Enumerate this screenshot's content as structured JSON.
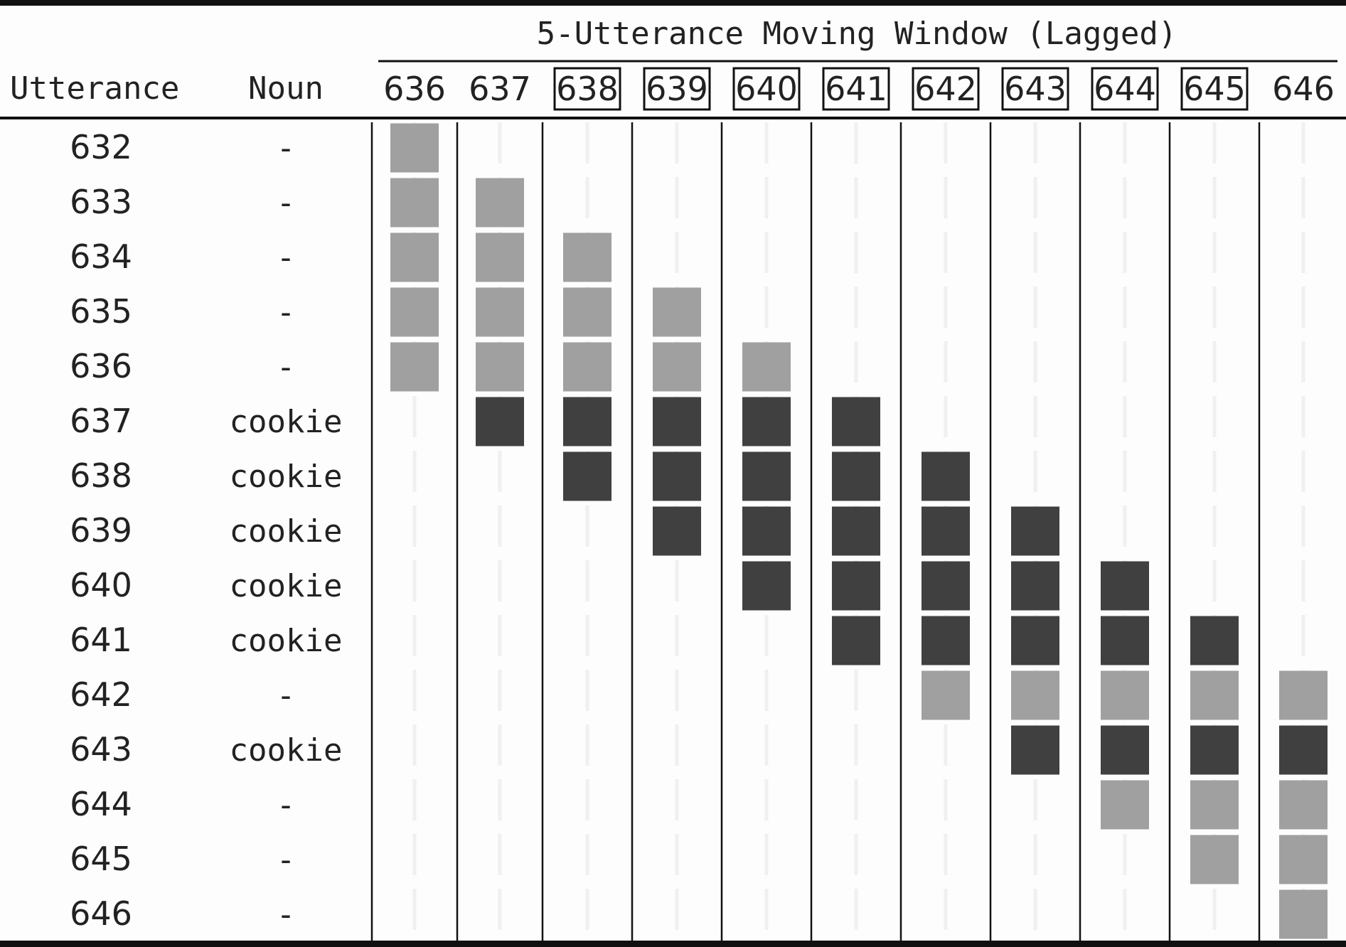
{
  "header": {
    "title": "5-Utterance Moving Window (Lagged)",
    "col_utterance": "Utterance",
    "col_noun": "Noun"
  },
  "windows": [
    {
      "label": "636",
      "boxed": false
    },
    {
      "label": "637",
      "boxed": false
    },
    {
      "label": "638",
      "boxed": true
    },
    {
      "label": "639",
      "boxed": true
    },
    {
      "label": "640",
      "boxed": true
    },
    {
      "label": "641",
      "boxed": true
    },
    {
      "label": "642",
      "boxed": true
    },
    {
      "label": "643",
      "boxed": true
    },
    {
      "label": "644",
      "boxed": true
    },
    {
      "label": "645",
      "boxed": true
    },
    {
      "label": "646",
      "boxed": false
    }
  ],
  "rows": [
    {
      "utterance": "632",
      "noun": "-",
      "has_noun": false
    },
    {
      "utterance": "633",
      "noun": "-",
      "has_noun": false
    },
    {
      "utterance": "634",
      "noun": "-",
      "has_noun": false
    },
    {
      "utterance": "635",
      "noun": "-",
      "has_noun": false
    },
    {
      "utterance": "636",
      "noun": "-",
      "has_noun": false
    },
    {
      "utterance": "637",
      "noun": "cookie",
      "has_noun": true
    },
    {
      "utterance": "638",
      "noun": "cookie",
      "has_noun": true
    },
    {
      "utterance": "639",
      "noun": "cookie",
      "has_noun": true
    },
    {
      "utterance": "640",
      "noun": "cookie",
      "has_noun": true
    },
    {
      "utterance": "641",
      "noun": "cookie",
      "has_noun": true
    },
    {
      "utterance": "642",
      "noun": "-",
      "has_noun": false
    },
    {
      "utterance": "643",
      "noun": "cookie",
      "has_noun": true
    },
    {
      "utterance": "644",
      "noun": "-",
      "has_noun": false
    },
    {
      "utterance": "645",
      "noun": "-",
      "has_noun": false
    },
    {
      "utterance": "646",
      "noun": "-",
      "has_noun": false
    }
  ],
  "window_size": 5,
  "colors": {
    "noun_present": "#404040",
    "noun_absent": "#a0a0a0",
    "rule": "#111111",
    "background": "#fdfdfd"
  }
}
